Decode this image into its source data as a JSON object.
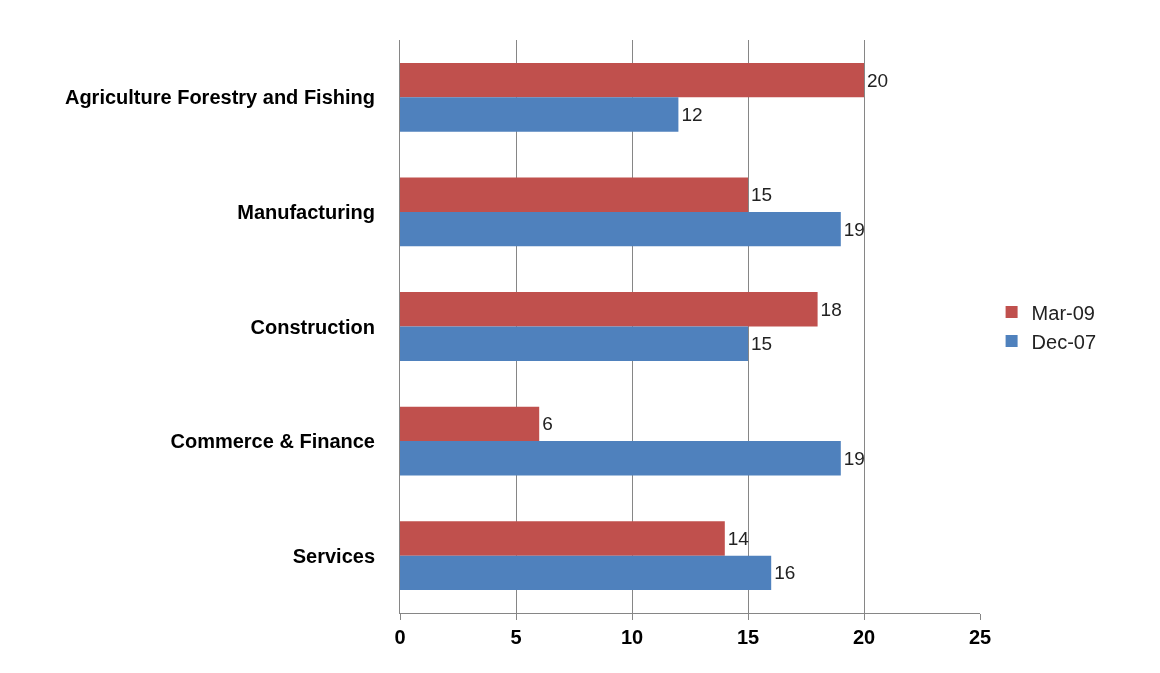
{
  "chart_data": {
    "type": "bar",
    "orientation": "horizontal",
    "categories": [
      "Agriculture Forestry and Fishing",
      "Manufacturing",
      "Construction",
      "Commerce & Finance",
      "Services"
    ],
    "series": [
      {
        "name": "Mar-09",
        "color": "#c0504d",
        "values": [
          20,
          15,
          18,
          6,
          14
        ]
      },
      {
        "name": "Dec-07",
        "color": "#4f81bd",
        "values": [
          12,
          19,
          15,
          19,
          16
        ]
      }
    ],
    "xlim": [
      0,
      25
    ],
    "xticks": [
      0,
      5,
      10,
      15,
      20,
      25
    ],
    "grid": "x",
    "legend": "right",
    "data_labels": true
  }
}
